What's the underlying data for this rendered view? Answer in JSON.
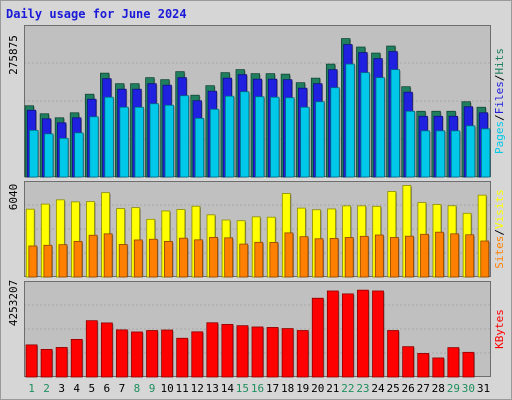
{
  "title": "Daily usage for June 2024",
  "chart_data": [
    {
      "type": "bar",
      "categories": [
        "1",
        "2",
        "3",
        "4",
        "5",
        "6",
        "7",
        "8",
        "9",
        "10",
        "11",
        "12",
        "13",
        "14",
        "15",
        "16",
        "17",
        "18",
        "19",
        "20",
        "21",
        "22",
        "23",
        "24",
        "25",
        "26",
        "27",
        "28",
        "29",
        "30",
        "31"
      ],
      "weekend_days": [
        "1",
        "2",
        "8",
        "9",
        "15",
        "16",
        "22",
        "23",
        "29",
        "30"
      ],
      "ytick_label": "275875",
      "ylim": [
        0,
        295000
      ],
      "ylabel_parts": [
        "Pages",
        "/",
        "Files",
        "/",
        "Hits"
      ],
      "series": [
        {
          "name": "Hits",
          "color": "#1f7f5f",
          "values": [
            142000,
            126000,
            118000,
            128000,
            165000,
            207000,
            186000,
            186000,
            198000,
            194000,
            210000,
            163000,
            182000,
            208000,
            214000,
            206000,
            206000,
            205000,
            188000,
            197000,
            225000,
            275875,
            259000,
            247000,
            261000,
            180000,
            131000,
            131000,
            131000,
            150000,
            139000
          ]
        },
        {
          "name": "Files",
          "color": "#2020e0",
          "values": [
            133000,
            116000,
            108000,
            118000,
            155000,
            196000,
            175000,
            175000,
            186000,
            183000,
            198000,
            152000,
            171000,
            197000,
            204000,
            195000,
            195000,
            194000,
            177000,
            186000,
            214000,
            264000,
            248000,
            236000,
            250000,
            169000,
            121000,
            121000,
            121000,
            140000,
            128000
          ]
        },
        {
          "name": "Pages",
          "color": "#00c8e8",
          "values": [
            93000,
            86000,
            77000,
            88000,
            120000,
            159000,
            139000,
            139000,
            146000,
            143000,
            162000,
            117000,
            135000,
            161000,
            170000,
            160000,
            159000,
            158000,
            139000,
            150000,
            178000,
            225000,
            208000,
            198000,
            214000,
            131000,
            92000,
            92000,
            92000,
            102000,
            96000
          ]
        }
      ]
    },
    {
      "type": "bar",
      "categories": [
        "1",
        "2",
        "3",
        "4",
        "5",
        "6",
        "7",
        "8",
        "9",
        "10",
        "11",
        "12",
        "13",
        "14",
        "15",
        "16",
        "17",
        "18",
        "19",
        "20",
        "21",
        "22",
        "23",
        "24",
        "25",
        "26",
        "27",
        "28",
        "29",
        "30",
        "31"
      ],
      "ytick_label": "6040",
      "ylim": [
        0,
        7800
      ],
      "ylabel_parts": [
        "Sites",
        "/",
        "Visits"
      ],
      "series": [
        {
          "name": "Visits",
          "color": "#ffff00",
          "values": [
            5750,
            6180,
            6540,
            6370,
            6390,
            7150,
            5800,
            5880,
            4890,
            5600,
            5720,
            6000,
            5270,
            4830,
            4770,
            5100,
            5070,
            7080,
            5840,
            5700,
            5770,
            6030,
            6030,
            5990,
            7250,
            7760,
            6310,
            6150,
            6040,
            5400,
            6940
          ]
        },
        {
          "name": "Sites",
          "color": "#ff8000",
          "values": [
            2630,
            2690,
            2740,
            3020,
            3540,
            3660,
            2760,
            3140,
            3200,
            3020,
            3290,
            3150,
            3360,
            3320,
            2790,
            2940,
            2930,
            3740,
            3420,
            3240,
            3270,
            3350,
            3450,
            3560,
            3350,
            3460,
            3620,
            3800,
            3660,
            3580,
            3050
          ]
        }
      ]
    },
    {
      "type": "bar",
      "categories": [
        "1",
        "2",
        "3",
        "4",
        "5",
        "6",
        "7",
        "8",
        "9",
        "10",
        "11",
        "12",
        "13",
        "14",
        "15",
        "16",
        "17",
        "18",
        "19",
        "20",
        "21",
        "22",
        "23",
        "24",
        "25",
        "26",
        "27",
        "28",
        "29",
        "30",
        "31"
      ],
      "ytick_label": "4253207",
      "ylim": [
        0,
        5700000
      ],
      "ylabel_parts": [
        "KBytes"
      ],
      "series": [
        {
          "name": "KBytes",
          "color": "#ff0000",
          "values": [
            1990000,
            1710000,
            1830000,
            2330000,
            3490000,
            3350000,
            2920000,
            2790000,
            2880000,
            2910000,
            2400000,
            2800000,
            3360000,
            3260000,
            3180000,
            3100000,
            3070000,
            3000000,
            2880000,
            4880000,
            5330000,
            5150000,
            5380000,
            5330000,
            2880000,
            1880000,
            1460000,
            1180000,
            1820000,
            1530000,
            0
          ]
        }
      ]
    }
  ]
}
